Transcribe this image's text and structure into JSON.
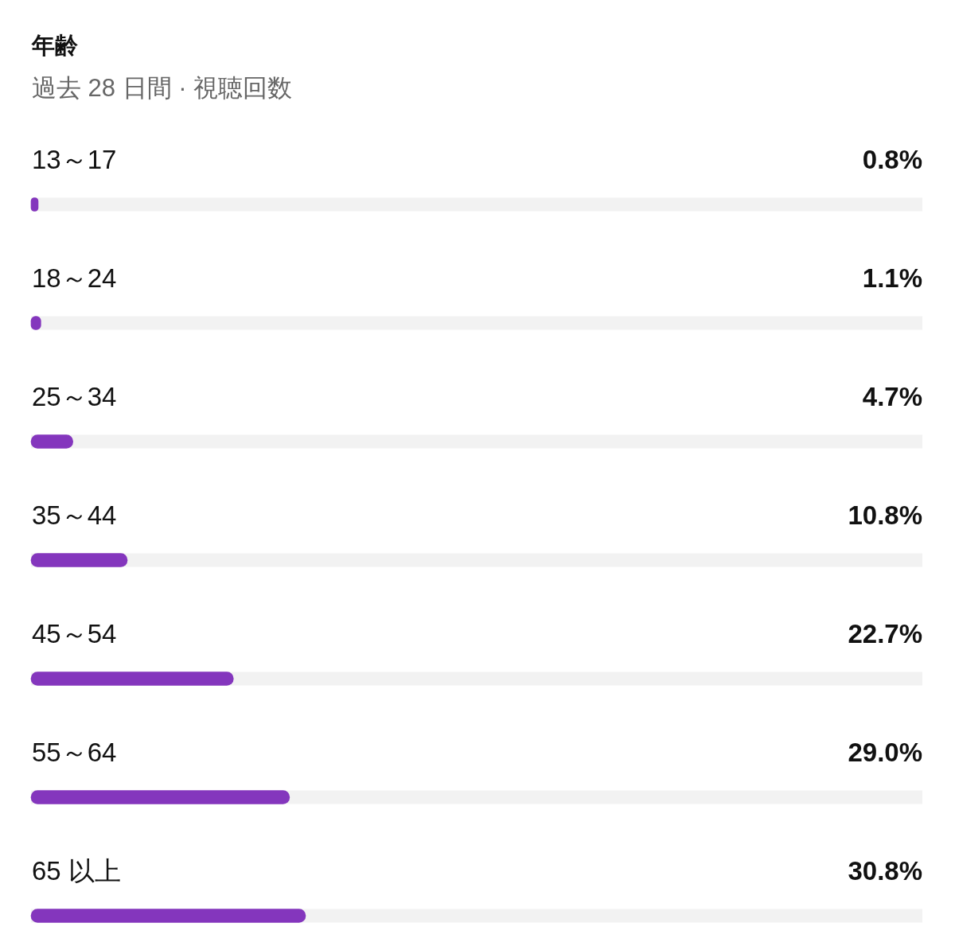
{
  "chart_data": {
    "type": "bar",
    "orientation": "horizontal",
    "title": "年齢",
    "subtitle": "過去 28 日間 · 視聴回数",
    "categories": [
      "13～17",
      "18～24",
      "25～34",
      "35～44",
      "45～54",
      "55～64",
      "65 以上"
    ],
    "values": [
      0.8,
      1.1,
      4.7,
      10.8,
      22.7,
      29.0,
      30.8
    ],
    "value_labels": [
      "0.8%",
      "1.1%",
      "4.7%",
      "10.8%",
      "22.7%",
      "29.0%",
      "30.8%"
    ],
    "color": "#8436bd",
    "xlim": [
      0,
      100
    ],
    "tick_labels": "y"
  }
}
